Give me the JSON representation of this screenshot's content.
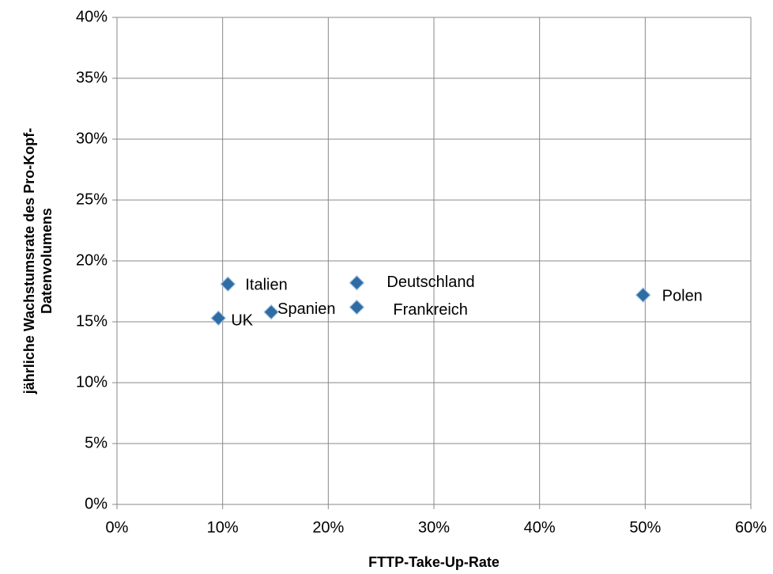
{
  "chart_data": {
    "type": "scatter",
    "xlabel": "FTTP-Take-Up-Rate",
    "ylabel": [
      "jährliche Wachstumsrate des Pro-Kopf-",
      "Datenvolumens"
    ],
    "series": [
      {
        "name": null,
        "color": "#2e6da4",
        "labels": [
          "UK",
          "Italien",
          "Spanien",
          "Deutschland",
          "Frankreich",
          "Polen"
        ],
        "x": [
          9.6,
          10.5,
          14.6,
          22.7,
          22.7,
          49.8
        ],
        "values": [
          15.3,
          18.1,
          15.8,
          18.2,
          16.2,
          17.2
        ]
      }
    ],
    "xlim": [
      0,
      60
    ],
    "xticks": [
      {
        "value": 0,
        "label": "0%"
      },
      {
        "value": 10,
        "label": "10%"
      },
      {
        "value": 20,
        "label": "20%"
      },
      {
        "value": 30,
        "label": "30%"
      },
      {
        "value": 40,
        "label": "40%"
      },
      {
        "value": 50,
        "label": "50%"
      },
      {
        "value": 60,
        "label": "60%"
      }
    ],
    "ylim": [
      0,
      40
    ],
    "yticks": [
      {
        "value": 0,
        "label": "0%"
      },
      {
        "value": 5,
        "label": "5%"
      },
      {
        "value": 10,
        "label": "10%"
      },
      {
        "value": 15,
        "label": "15%"
      },
      {
        "value": 20,
        "label": "20%"
      },
      {
        "value": 25,
        "label": "25%"
      },
      {
        "value": 30,
        "label": "30%"
      },
      {
        "value": 35,
        "label": "35%"
      },
      {
        "value": 40,
        "label": "40%"
      }
    ],
    "grid": true
  }
}
